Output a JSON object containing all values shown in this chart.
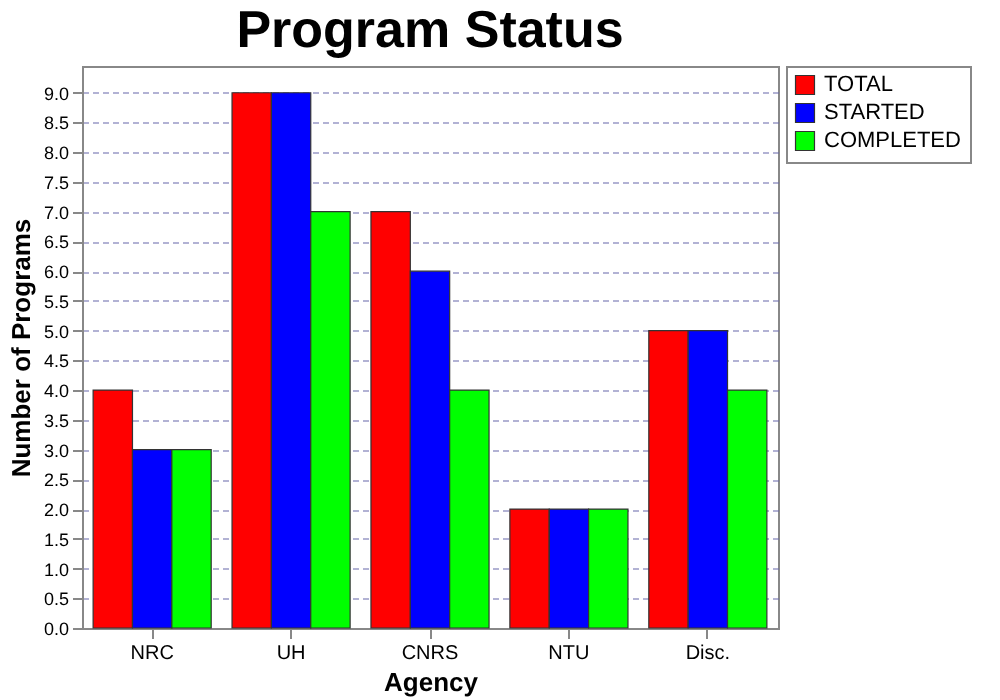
{
  "chart_data": {
    "type": "bar",
    "title": "Program Status",
    "xlabel": "Agency",
    "ylabel": "Number of Programs",
    "categories": [
      "NRC",
      "UH",
      "CNRS",
      "NTU",
      "Disc."
    ],
    "series": [
      {
        "name": "TOTAL",
        "color": "#ff0000",
        "values": [
          4,
          9,
          7,
          2,
          5
        ]
      },
      {
        "name": "STARTED",
        "color": "#0000ff",
        "values": [
          3,
          9,
          6,
          2,
          5
        ]
      },
      {
        "name": "COMPLETED",
        "color": "#00ff00",
        "values": [
          3,
          7,
          4,
          2,
          4
        ]
      }
    ],
    "ylim": [
      0,
      9.45
    ],
    "yticks": [
      {
        "value": 0,
        "label": "0.0"
      },
      {
        "value": 0.5,
        "label": "0.5"
      },
      {
        "value": 1,
        "label": "1.0"
      },
      {
        "value": 1.5,
        "label": "1.5"
      },
      {
        "value": 2,
        "label": "2.0"
      },
      {
        "value": 2.5,
        "label": "2.5"
      },
      {
        "value": 3,
        "label": "3.0"
      },
      {
        "value": 3.5,
        "label": "3.5"
      },
      {
        "value": 4,
        "label": "4.0"
      },
      {
        "value": 4.5,
        "label": "4.5"
      },
      {
        "value": 5,
        "label": "5.0"
      },
      {
        "value": 5.5,
        "label": "5.5"
      },
      {
        "value": 6,
        "label": "6.0"
      },
      {
        "value": 6.5,
        "label": "6.5"
      },
      {
        "value": 7,
        "label": "7.0"
      },
      {
        "value": 7.5,
        "label": "7.5"
      },
      {
        "value": 8,
        "label": "8.0"
      },
      {
        "value": 8.5,
        "label": "8.5"
      },
      {
        "value": 9,
        "label": "9.0"
      }
    ],
    "grid": "y",
    "legend": "right"
  }
}
